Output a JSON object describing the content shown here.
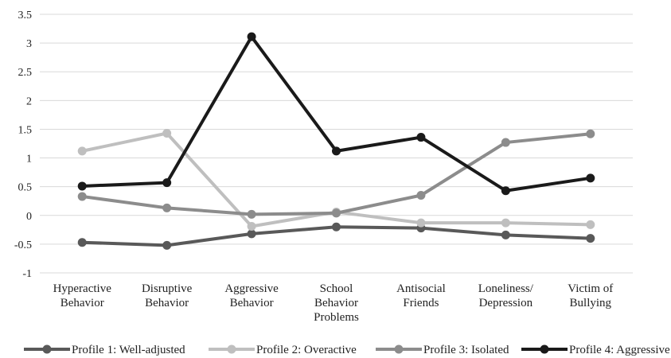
{
  "chart_data": {
    "type": "line",
    "title": "",
    "xlabel": "",
    "ylabel": "",
    "ylim": [
      -1,
      3.5
    ],
    "yticks": [
      "3.5",
      "3",
      "2.5",
      "2",
      "1.5",
      "1",
      "0.5",
      "0",
      "-0.5",
      "-1"
    ],
    "grid": true,
    "legend_position": "bottom",
    "categories": [
      [
        "Hyperactive",
        "Behavior"
      ],
      [
        "Disruptive",
        "Behavior"
      ],
      [
        "Aggressive",
        "Behavior"
      ],
      [
        "School",
        "Behavior",
        "Problems"
      ],
      [
        "Antisocial",
        "Friends"
      ],
      [
        "Loneliness/",
        "Depression"
      ],
      [
        "Victim of",
        "Bullying"
      ]
    ],
    "series": [
      {
        "name": "Profile 1: Well-adjusted",
        "color": "#595959",
        "values": [
          -0.47,
          -0.52,
          -0.32,
          -0.2,
          -0.22,
          -0.34,
          -0.4
        ]
      },
      {
        "name": "Profile 2: Overactive",
        "color": "#bfbfbf",
        "values": [
          1.12,
          1.43,
          -0.19,
          0.06,
          -0.13,
          -0.13,
          -0.16
        ]
      },
      {
        "name": "Profile 3: Isolated",
        "color": "#8c8c8c",
        "values": [
          0.33,
          0.13,
          0.02,
          0.04,
          0.35,
          1.27,
          1.42
        ]
      },
      {
        "name": "Profile 4: Aggressive",
        "color": "#1a1a1a",
        "values": [
          0.51,
          0.57,
          3.11,
          1.12,
          1.36,
          0.43,
          0.65
        ]
      }
    ]
  }
}
